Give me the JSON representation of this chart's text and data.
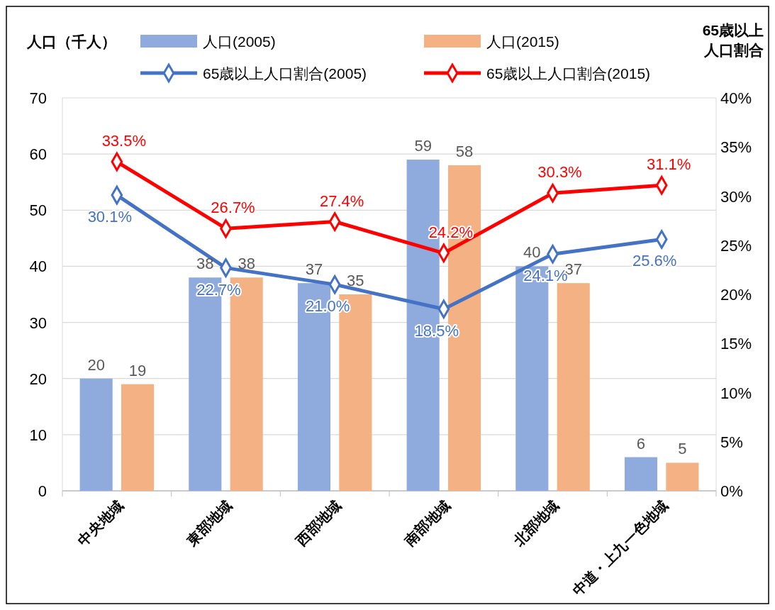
{
  "chart_data": {
    "type": "bar",
    "ylabel": "人口（千人）",
    "y2label": "65歳以上人口割合",
    "categories": [
      "中央地域",
      "東部地域",
      "西部地域",
      "南部地域",
      "北部地域",
      "中道・上九一色地域"
    ],
    "series": [
      {
        "name": "人口(2005)",
        "color": "#8faadc",
        "values": [
          20,
          38,
          37,
          59,
          40,
          6
        ],
        "value_labels": [
          "20",
          "38",
          "37",
          "59",
          "40",
          "6"
        ]
      },
      {
        "name": "人口(2015)",
        "color": "#f4b183",
        "values": [
          19,
          38,
          35,
          58,
          37,
          5
        ],
        "value_labels": [
          "19",
          "38",
          "35",
          "58",
          "37",
          "5"
        ]
      },
      {
        "name": "65歳以上人口割合(2005)",
        "type": "line",
        "axis": "y2",
        "color": "#4472c4",
        "values": [
          30.1,
          22.7,
          21.0,
          18.5,
          24.1,
          25.6
        ],
        "value_labels": [
          "30.1%",
          "22.7%",
          "21.0%",
          "18.5%",
          "24.1%",
          "25.6%"
        ]
      },
      {
        "name": "65歳以上人口割合(2015)",
        "type": "line",
        "axis": "y2",
        "color": "#ff0000",
        "values": [
          33.5,
          26.7,
          27.4,
          24.2,
          30.3,
          31.1
        ],
        "value_labels": [
          "33.5%",
          "26.7%",
          "27.4%",
          "24.2%",
          "30.3%",
          "31.1%"
        ]
      }
    ],
    "ylim": [
      0,
      70
    ],
    "yticks": [
      0,
      10,
      20,
      30,
      40,
      50,
      60,
      70
    ],
    "y2lim": [
      0,
      40
    ],
    "y2ticks": [
      {
        "value": 0,
        "label": "0%"
      },
      {
        "value": 5,
        "label": "5%"
      },
      {
        "value": 10,
        "label": "10%"
      },
      {
        "value": 15,
        "label": "15%"
      },
      {
        "value": 20,
        "label": "20%"
      },
      {
        "value": 25,
        "label": "25%"
      },
      {
        "value": 30,
        "label": "30%"
      },
      {
        "value": 35,
        "label": "35%"
      },
      {
        "value": 40,
        "label": "40%"
      }
    ],
    "grid": "y",
    "legend": "top",
    "marker": "diamond",
    "line_style": "solid"
  }
}
